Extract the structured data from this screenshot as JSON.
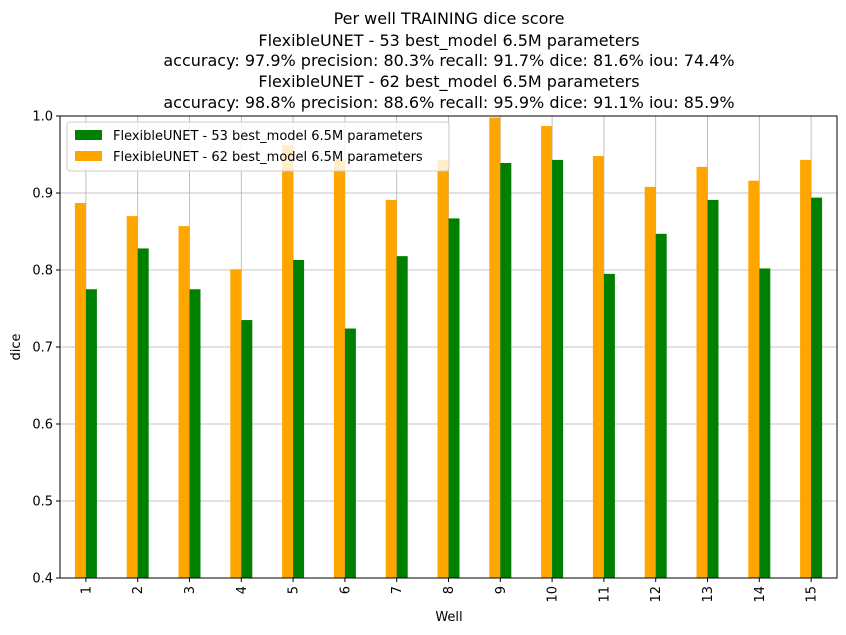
{
  "chart_data": {
    "type": "bar",
    "title_lines": [
      "Per well TRAINING dice score",
      "FlexibleUNET - 53 best_model 6.5M parameters",
      "accuracy: 97.9% precision: 80.3% recall: 91.7% dice: 81.6% iou: 74.4%",
      "FlexibleUNET - 62 best_model 6.5M parameters",
      "accuracy: 98.8% precision: 88.6% recall: 95.9% dice: 91.1% iou: 85.9%"
    ],
    "xlabel": "Well",
    "ylabel": "dice",
    "ylim": [
      0.4,
      1.0
    ],
    "yticks": [
      "0.4",
      "0.5",
      "0.6",
      "0.7",
      "0.8",
      "0.9",
      "1.0"
    ],
    "categories": [
      "1",
      "2",
      "3",
      "4",
      "5",
      "6",
      "7",
      "8",
      "9",
      "10",
      "11",
      "12",
      "13",
      "14",
      "15"
    ],
    "grid": true,
    "legend_position": "top-left",
    "series": [
      {
        "name": "FlexibleUNET - 53 best_model 6.5M parameters",
        "color": "#008000",
        "values": [
          0.775,
          0.828,
          0.775,
          0.735,
          0.813,
          0.724,
          0.818,
          0.867,
          0.939,
          0.943,
          0.795,
          0.847,
          0.891,
          0.802,
          0.894
        ]
      },
      {
        "name": "FlexibleUNET - 62 best_model 6.5M parameters",
        "color": "#ffa500",
        "values": [
          0.887,
          0.87,
          0.857,
          0.801,
          0.962,
          0.943,
          0.891,
          0.943,
          0.998,
          0.987,
          0.948,
          0.908,
          0.934,
          0.916,
          0.943
        ]
      }
    ]
  }
}
